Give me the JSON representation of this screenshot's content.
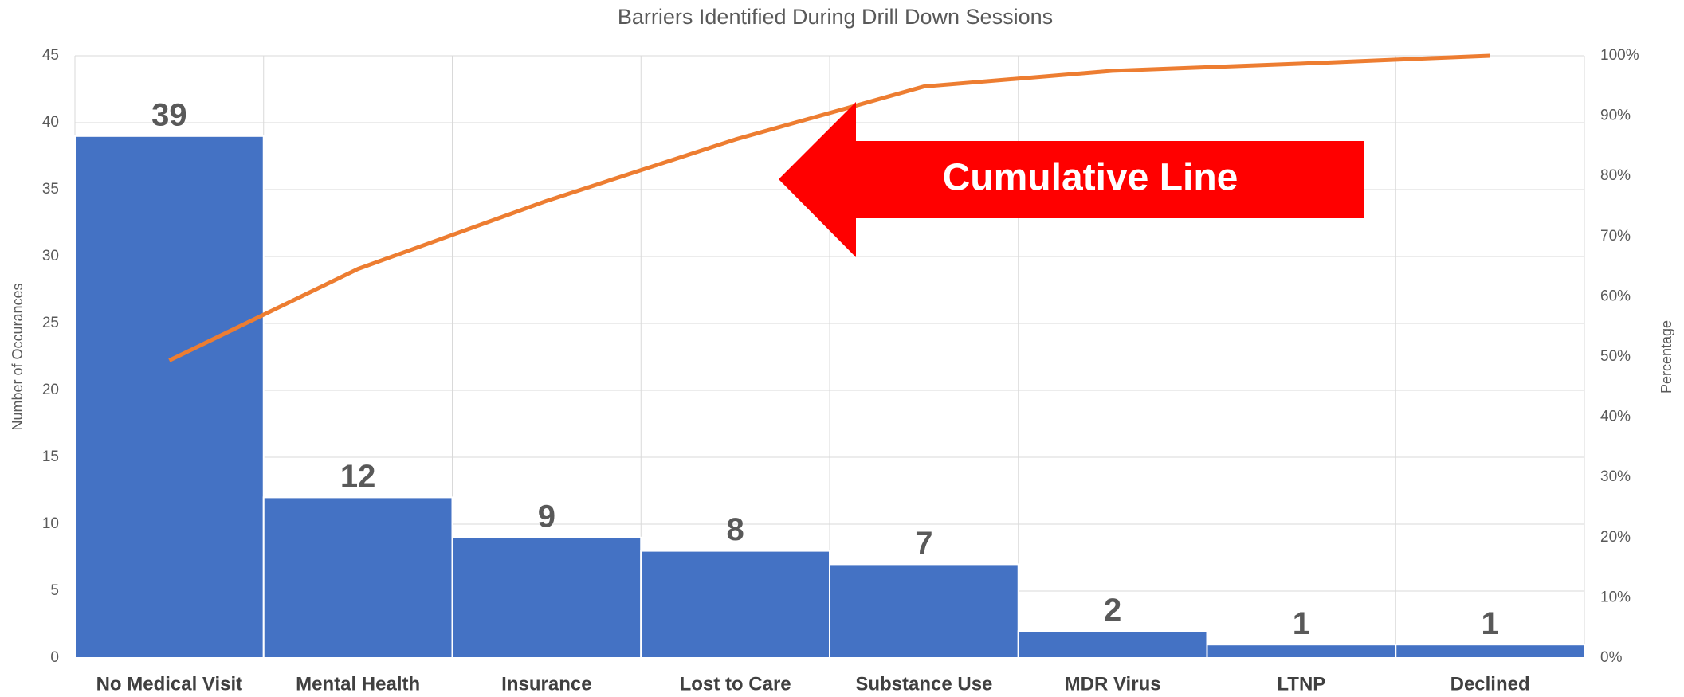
{
  "chart_data": {
    "type": "pareto",
    "title": "Barriers Identified During Drill Down Sessions",
    "ylabel": "Number of Occurances",
    "y2label": "Percentage",
    "annotation": "Cumulative Line",
    "categories": [
      "No Medical Visit",
      "Mental Health",
      "Insurance",
      "Lost to Care",
      "Substance Use",
      "MDR Virus",
      "LTNP",
      "Declined"
    ],
    "series": [
      {
        "name": "Number of Occurances",
        "type": "bar",
        "color": "#4472c4",
        "values": [
          39,
          12,
          9,
          8,
          7,
          2,
          1,
          1
        ]
      },
      {
        "name": "Percentage",
        "type": "line",
        "axis": "y2",
        "color": "#ed7d31",
        "values": [
          49.4,
          64.6,
          75.9,
          86.1,
          94.9,
          97.5,
          98.7,
          100
        ]
      }
    ],
    "ylim": [
      0,
      45
    ],
    "yticks": [
      0,
      5,
      10,
      15,
      20,
      25,
      30,
      35,
      40,
      45
    ],
    "y2lim": [
      0,
      100
    ],
    "y2ticks": [
      {
        "value": 0,
        "label": "0%"
      },
      {
        "value": 10,
        "label": "10%"
      },
      {
        "value": 20,
        "label": "20%"
      },
      {
        "value": 30,
        "label": "30%"
      },
      {
        "value": 40,
        "label": "40%"
      },
      {
        "value": 50,
        "label": "50%"
      },
      {
        "value": 60,
        "label": "60%"
      },
      {
        "value": 70,
        "label": "70%"
      },
      {
        "value": 80,
        "label": "80%"
      },
      {
        "value": 90,
        "label": "90%"
      },
      {
        "value": 100,
        "label": "100%"
      }
    ],
    "grid": true,
    "data_labels": true
  }
}
